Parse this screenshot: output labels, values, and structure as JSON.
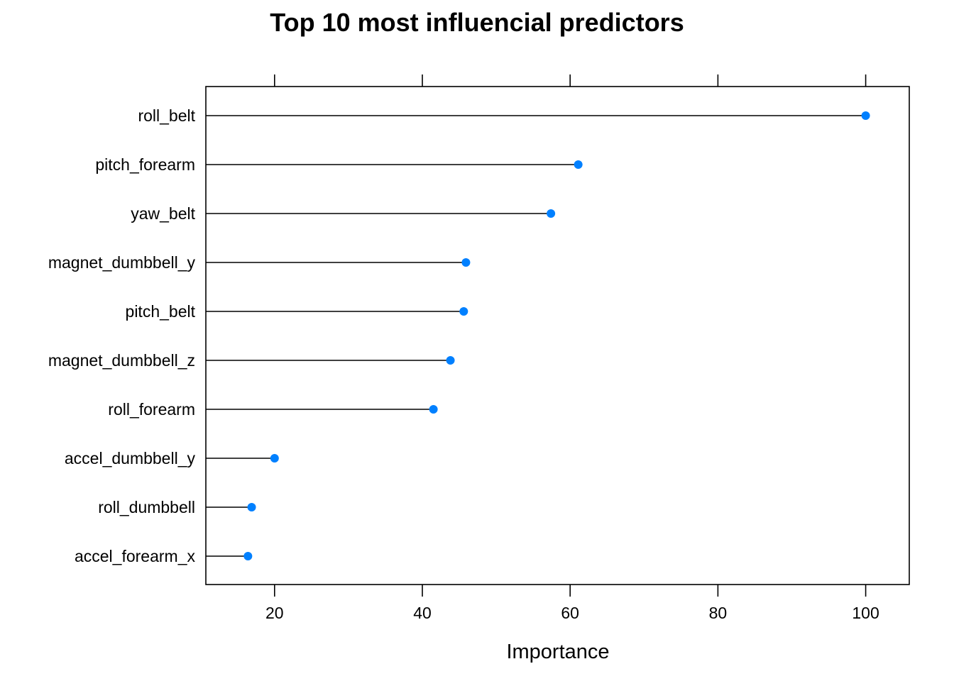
{
  "chart_data": {
    "type": "dotplot",
    "title": "Top 10 most influencial predictors",
    "xlabel": "Importance",
    "xlim": [
      10.7,
      105.9
    ],
    "xticks": [
      20,
      40,
      60,
      80,
      100
    ],
    "categories": [
      "roll_belt",
      "pitch_forearm",
      "yaw_belt",
      "magnet_dumbbell_y",
      "pitch_belt",
      "magnet_dumbbell_z",
      "roll_forearm",
      "accel_dumbbell_y",
      "roll_dumbbell",
      "accel_forearm_x"
    ],
    "values": [
      100,
      61.1,
      57.4,
      45.9,
      45.6,
      43.8,
      41.5,
      20.0,
      16.9,
      16.4
    ],
    "point_color": "#0080ff",
    "line_color": "#000000",
    "grid": false
  }
}
